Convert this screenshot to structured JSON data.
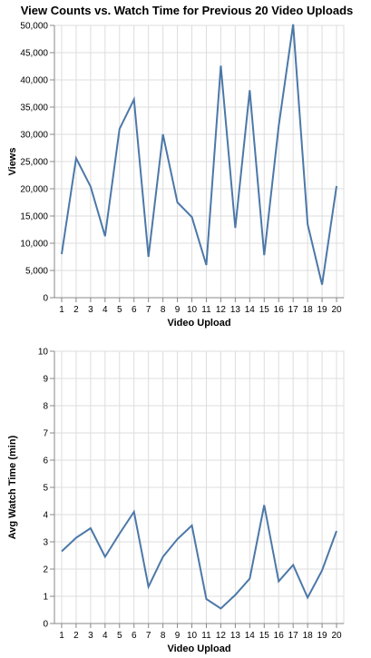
{
  "title": "View Counts vs. Watch Time for Previous 20 Video Uploads",
  "chart_data": [
    {
      "type": "line",
      "xlabel": "Video Upload",
      "ylabel": "Views",
      "x": [
        1,
        2,
        3,
        4,
        5,
        6,
        7,
        8,
        9,
        10,
        11,
        12,
        13,
        14,
        15,
        16,
        17,
        18,
        19,
        20
      ],
      "values": [
        8000,
        25600,
        20400,
        11300,
        31000,
        36400,
        7500,
        30000,
        17500,
        14800,
        6000,
        42600,
        12800,
        38100,
        7800,
        31500,
        50200,
        13500,
        2400,
        20500
      ],
      "ylim": [
        0,
        50000
      ],
      "yticks": [
        0,
        5000,
        10000,
        15000,
        20000,
        25000,
        30000,
        35000,
        40000,
        45000,
        50000
      ],
      "ytick_labels": [
        "0",
        "5,000",
        "10,000",
        "15,000",
        "20,000",
        "25,000",
        "30,000",
        "35,000",
        "40,000",
        "45,000",
        "50,000"
      ],
      "grid": true,
      "color": "#4c78a8"
    },
    {
      "type": "line",
      "xlabel": "Video Upload",
      "ylabel": "Avg Watch Time (min)",
      "x": [
        1,
        2,
        3,
        4,
        5,
        6,
        7,
        8,
        9,
        10,
        11,
        12,
        13,
        14,
        15,
        16,
        17,
        18,
        19,
        20
      ],
      "values": [
        2.65,
        3.15,
        3.5,
        2.45,
        3.3,
        4.1,
        1.35,
        2.45,
        3.1,
        3.6,
        0.9,
        0.55,
        1.05,
        1.65,
        4.35,
        1.55,
        2.15,
        0.95,
        1.95,
        3.4
      ],
      "ylim": [
        0,
        10
      ],
      "yticks": [
        0,
        1,
        2,
        3,
        4,
        5,
        6,
        7,
        8,
        9,
        10
      ],
      "ytick_labels": [
        "0",
        "1",
        "2",
        "3",
        "4",
        "5",
        "6",
        "7",
        "8",
        "9",
        "10"
      ],
      "grid": true,
      "color": "#4c78a8"
    }
  ]
}
